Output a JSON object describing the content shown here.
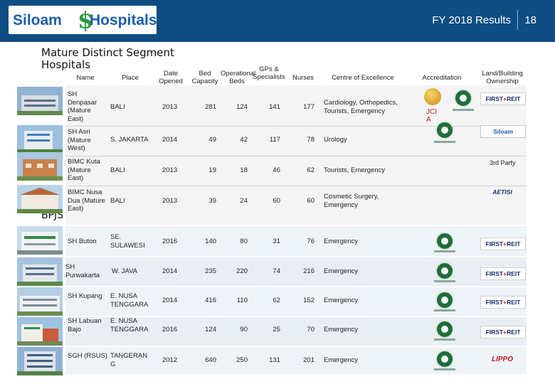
{
  "header": {
    "logo_left": "Siloam",
    "logo_right": "Hospitals",
    "title": "FY 2018 Results",
    "page_number": "18"
  },
  "section": {
    "title": "Mature Distinct Segment Hospitals",
    "bpjs_label": "BPJS"
  },
  "columns": {
    "name": "Name",
    "place": "Place",
    "date_opened": "Date Opened",
    "bed_capacity": "Bed Capacity",
    "operational_beds": "Operational Beds",
    "gps_specialists": "GPs & Specialists",
    "nurses": "Nurses",
    "centre_of_excellence": "Centre of Excellence",
    "accreditation": "Accreditation",
    "ownership": "Land/Building Ownership"
  },
  "accreditation": {
    "jci_label": "JCI A"
  },
  "ownership_labels": {
    "first_reit": "FIRST",
    "first_reit_suffix": "REIT",
    "siloam": "Siloam",
    "third_party": "3rd Party",
    "lippo": "LIPPO",
    "aetisi": "AETISI"
  },
  "rows": [
    {
      "name": "SH Denpasar (Mature East)",
      "place": "BALI",
      "date": "2013",
      "bed": "281",
      "ops": "124",
      "gps": "141",
      "nurses": "177",
      "coe": "Cardiology, Orthopedics, Tourists, Emergency"
    },
    {
      "name": "SH Asri (Mature West)",
      "place": "S. JAKARTA",
      "date": "2014",
      "bed": "49",
      "ops": "42",
      "gps": "117",
      "nurses": "78",
      "coe": "Urology"
    },
    {
      "name": "BIMC Kuta (Mature East)",
      "place": "BALI",
      "date": "2013",
      "bed": "19",
      "ops": "18",
      "gps": "46",
      "nurses": "62",
      "coe": "Tourists, Emergency"
    },
    {
      "name": "BIMC Nusa Dua (Mature East)",
      "place": "BALI",
      "date": "2013",
      "bed": "39",
      "ops": "24",
      "gps": "60",
      "nurses": "60",
      "coe": "Cosmetic Surgery, Emergency"
    },
    {
      "name": "SH Buton",
      "place": "SE. SULAWESI",
      "date": "2016",
      "bed": "140",
      "ops": "80",
      "gps": "31",
      "nurses": "76",
      "coe": "Emergency"
    },
    {
      "name": "SH Purwakarta",
      "place": "W. JAVA",
      "date": "2014",
      "bed": "235",
      "ops": "220",
      "gps": "74",
      "nurses": "216",
      "coe": "Emergency"
    },
    {
      "name": "SH Kupang",
      "place": "E. NUSA TENGGARA",
      "date": "2014",
      "bed": "416",
      "ops": "110",
      "gps": "62",
      "nurses": "152",
      "coe": "Emergency"
    },
    {
      "name": "SH Labuan Bajo",
      "place": "E. NUSA TENGGARA",
      "date": "2016",
      "bed": "124",
      "ops": "90",
      "gps": "25",
      "nurses": "70",
      "coe": "Emergency"
    },
    {
      "name": "SGH (RSUS)",
      "place": "TANGERANG",
      "date": "2012",
      "bed": "640",
      "ops": "250",
      "gps": "131",
      "nurses": "201",
      "coe": "Emergency"
    }
  ],
  "colors": {
    "header_bg": "#0e4d82",
    "row_bg": "#eef3f8",
    "accreditation_green": "#1f6e3a",
    "first_reit_red": "#d82020"
  }
}
